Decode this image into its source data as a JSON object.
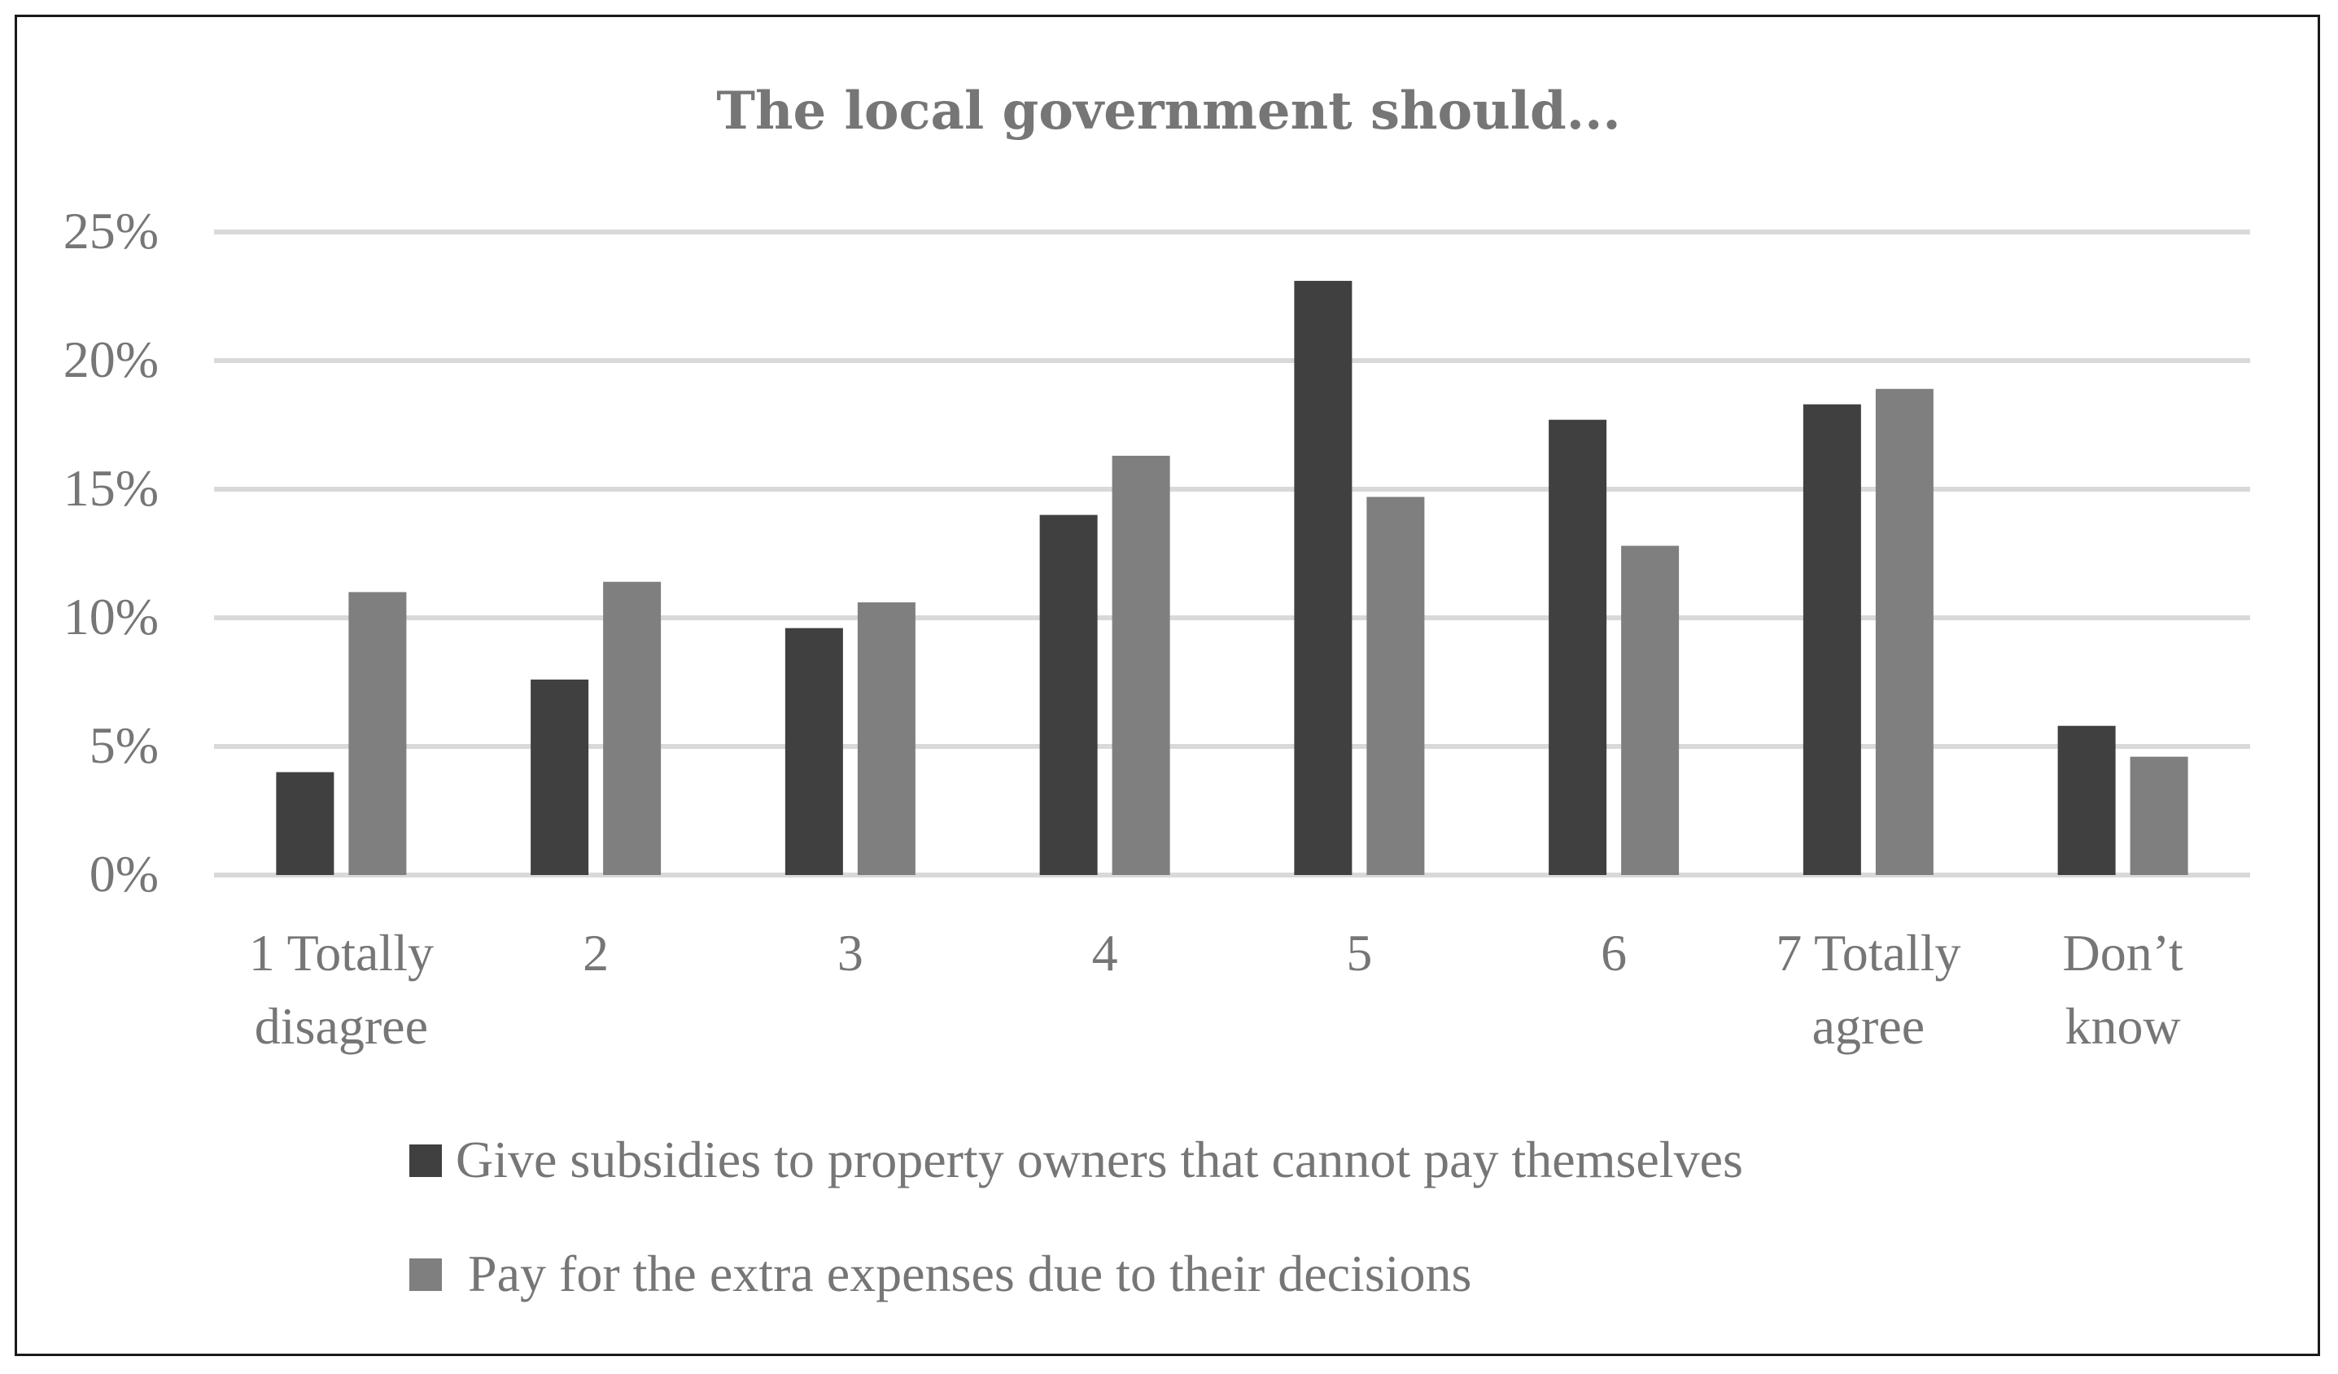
{
  "chart_data": {
    "type": "bar",
    "title": "The local government should...",
    "xlabel": "",
    "ylabel": "",
    "categories": [
      [
        "1 Totally",
        "disagree"
      ],
      [
        "2"
      ],
      [
        "3"
      ],
      [
        "4"
      ],
      [
        "5"
      ],
      [
        "6"
      ],
      [
        "7 Totally",
        "agree"
      ],
      [
        "Don’t",
        "know"
      ]
    ],
    "series": [
      {
        "name": "Give subsidies to property owners that cannot pay themselves",
        "color": "#404040",
        "values": [
          4.0,
          7.6,
          9.6,
          14.0,
          23.1,
          17.7,
          18.3,
          5.8
        ]
      },
      {
        "name": "Pay for the extra expenses due to their decisions",
        "color": "#7f7f7f",
        "values": [
          11.0,
          11.4,
          10.6,
          16.3,
          14.7,
          12.8,
          18.9,
          4.6
        ]
      }
    ],
    "ylim": [
      0,
      25
    ],
    "yticks": [
      "0%",
      "5%",
      "10%",
      "15%",
      "20%",
      "25%"
    ],
    "ytick_values": [
      0,
      5,
      10,
      15,
      20,
      25
    ],
    "grid": true,
    "legend_position": "bottom"
  }
}
